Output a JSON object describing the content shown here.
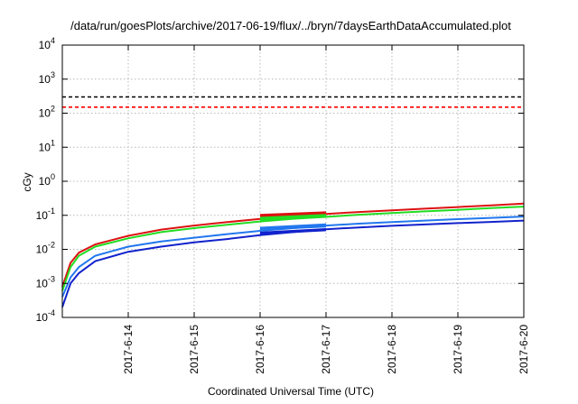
{
  "chart_data": {
    "type": "line",
    "title": "/data/run/goesPlots/archive/2017-06-19/flux/../bryn/7daysEarthDataAccumulated.plot",
    "xlabel": "Coordinated Universal Time (UTC)",
    "ylabel": "cGy",
    "y_scale": "log",
    "ylim": [
      0.0001,
      10000
    ],
    "xlim": [
      "2017-06-13T00:00",
      "2017-06-20T00:00"
    ],
    "x_tick_labels": [
      "2017-6-14",
      "2017-6-15",
      "2017-6-16",
      "2017-6-17",
      "2017-6-18",
      "2017-6-19",
      "2017-6-20"
    ],
    "y_ticks": [
      {
        "value": 0.0001,
        "base": "10",
        "exp": "-4"
      },
      {
        "value": 0.001,
        "base": "10",
        "exp": "-3"
      },
      {
        "value": 0.01,
        "base": "10",
        "exp": "-2"
      },
      {
        "value": 0.1,
        "base": "10",
        "exp": "-1"
      },
      {
        "value": 1,
        "base": "10",
        "exp": "0"
      },
      {
        "value": 10,
        "base": "10",
        "exp": "1"
      },
      {
        "value": 100,
        "base": "10",
        "exp": "2"
      },
      {
        "value": 1000,
        "base": "10",
        "exp": "3"
      },
      {
        "value": 10000,
        "base": "10",
        "exp": "4"
      }
    ],
    "grid": true,
    "reference_lines": [
      {
        "value": 300,
        "color": "#000000",
        "style": "dashed"
      },
      {
        "value": 150,
        "color": "#ff0000",
        "style": "dashed"
      }
    ],
    "series": [
      {
        "color": "#dd1111",
        "x": [
          "2017-06-13T00:00",
          "2017-06-13T03:00",
          "2017-06-13T06:00",
          "2017-06-13T12:00",
          "2017-06-14T00:00",
          "2017-06-14T12:00",
          "2017-06-15T00:00",
          "2017-06-15T12:00",
          "2017-06-16T00:00",
          "2017-06-16T12:00",
          "2017-06-17T00:00",
          "2017-06-17T12:00",
          "2017-06-18T00:00",
          "2017-06-18T12:00",
          "2017-06-19T00:00",
          "2017-06-19T12:00",
          "2017-06-20T00:00"
        ],
        "values": [
          0.0008,
          0.004,
          0.008,
          0.014,
          0.025,
          0.038,
          0.05,
          0.063,
          0.078,
          0.094,
          0.11,
          0.125,
          0.14,
          0.157,
          0.175,
          0.195,
          0.22
        ]
      },
      {
        "color": "#22dd22",
        "x": [
          "2017-06-13T00:00",
          "2017-06-13T03:00",
          "2017-06-13T06:00",
          "2017-06-13T12:00",
          "2017-06-14T00:00",
          "2017-06-14T12:00",
          "2017-06-15T00:00",
          "2017-06-15T12:00",
          "2017-06-16T00:00",
          "2017-06-16T12:00",
          "2017-06-17T00:00",
          "2017-06-17T12:00",
          "2017-06-18T00:00",
          "2017-06-18T12:00",
          "2017-06-19T00:00",
          "2017-06-19T12:00",
          "2017-06-20T00:00"
        ],
        "values": [
          0.0006,
          0.003,
          0.0065,
          0.012,
          0.021,
          0.032,
          0.042,
          0.053,
          0.066,
          0.079,
          0.09,
          0.104,
          0.117,
          0.13,
          0.145,
          0.162,
          0.18
        ]
      },
      {
        "color": "#2277ee",
        "x": [
          "2017-06-13T00:00",
          "2017-06-13T03:00",
          "2017-06-13T06:00",
          "2017-06-13T12:00",
          "2017-06-14T00:00",
          "2017-06-14T12:00",
          "2017-06-15T00:00",
          "2017-06-15T12:00",
          "2017-06-16T00:00",
          "2017-06-16T12:00",
          "2017-06-17T00:00",
          "2017-06-17T12:00",
          "2017-06-18T00:00",
          "2017-06-18T12:00",
          "2017-06-19T00:00",
          "2017-06-19T12:00",
          "2017-06-20T00:00"
        ],
        "values": [
          0.0004,
          0.0015,
          0.003,
          0.0065,
          0.012,
          0.017,
          0.022,
          0.028,
          0.035,
          0.042,
          0.05,
          0.057,
          0.063,
          0.07,
          0.077,
          0.084,
          0.092
        ]
      },
      {
        "color": "#1122cc",
        "x": [
          "2017-06-13T00:00",
          "2017-06-13T03:00",
          "2017-06-13T06:00",
          "2017-06-13T12:00",
          "2017-06-14T00:00",
          "2017-06-14T12:00",
          "2017-06-15T00:00",
          "2017-06-15T12:00",
          "2017-06-16T00:00",
          "2017-06-16T12:00",
          "2017-06-17T00:00",
          "2017-06-17T12:00",
          "2017-06-18T00:00",
          "2017-06-18T12:00",
          "2017-06-19T00:00",
          "2017-06-19T12:00",
          "2017-06-20T00:00"
        ],
        "values": [
          0.0002,
          0.001,
          0.002,
          0.0045,
          0.0085,
          0.012,
          0.016,
          0.02,
          0.026,
          0.032,
          0.039,
          0.044,
          0.049,
          0.054,
          0.059,
          0.064,
          0.07
        ]
      }
    ],
    "highlight_segments": [
      {
        "color": "#dd1111",
        "x": [
          "2017-06-16T00:00",
          "2017-06-17T00:00"
        ],
        "values": [
          [
            0.085,
            0.11
          ],
          [
            0.1,
            0.13
          ]
        ]
      },
      {
        "color": "#22dd22",
        "x": [
          "2017-06-16T00:00",
          "2017-06-17T00:00"
        ],
        "values": [
          [
            0.07,
            0.09
          ],
          [
            0.085,
            0.11
          ]
        ]
      },
      {
        "color": "#2277ee",
        "x": [
          "2017-06-16T00:00",
          "2017-06-17T00:00"
        ],
        "values": [
          [
            0.036,
            0.046
          ],
          [
            0.044,
            0.058
          ]
        ]
      },
      {
        "color": "#1122cc",
        "x": [
          "2017-06-16T00:00",
          "2017-06-17T00:00"
        ],
        "values": [
          [
            0.027,
            0.033
          ],
          [
            0.034,
            0.042
          ]
        ]
      }
    ]
  }
}
